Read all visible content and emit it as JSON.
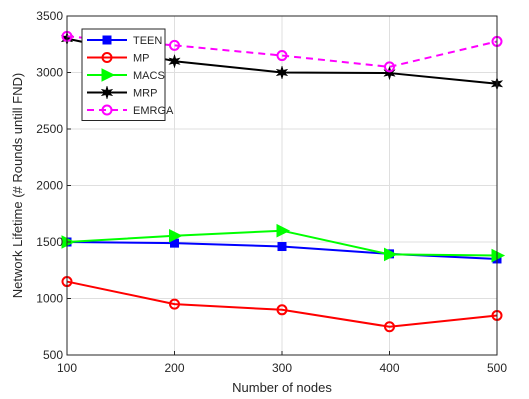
{
  "chart_data": {
    "type": "line",
    "title": "",
    "xlabel": "Number of nodes",
    "ylabel": "Network Lifetime (# Rounds untill FND)",
    "x": [
      100,
      200,
      300,
      400,
      500
    ],
    "xlim": [
      100,
      500
    ],
    "ylim": [
      500,
      3500
    ],
    "xticks": [
      "100",
      "200",
      "300",
      "400",
      "500"
    ],
    "yticks": [
      "500",
      "1000",
      "1500",
      "2000",
      "2500",
      "3000",
      "3500"
    ],
    "grid": true,
    "legend_position": "top-left",
    "series": [
      {
        "name": "TEEN",
        "values": [
          1500,
          1490,
          1460,
          1395,
          1350
        ],
        "color": "#0000ff",
        "marker": "square",
        "dash": false
      },
      {
        "name": "MP",
        "values": [
          1150,
          950,
          900,
          750,
          850
        ],
        "color": "#ff0000",
        "marker": "circle",
        "dash": false
      },
      {
        "name": "MACS",
        "values": [
          1500,
          1555,
          1600,
          1390,
          1380
        ],
        "color": "#00ff00",
        "marker": "triangle",
        "dash": false
      },
      {
        "name": "MRP",
        "values": [
          3300,
          3100,
          3000,
          2995,
          2900
        ],
        "color": "#000000",
        "marker": "star",
        "dash": false
      },
      {
        "name": "EMRGA",
        "values": [
          3320,
          3240,
          3150,
          3050,
          3275
        ],
        "color": "#ff00ff",
        "marker": "circle",
        "dash": true
      }
    ]
  }
}
